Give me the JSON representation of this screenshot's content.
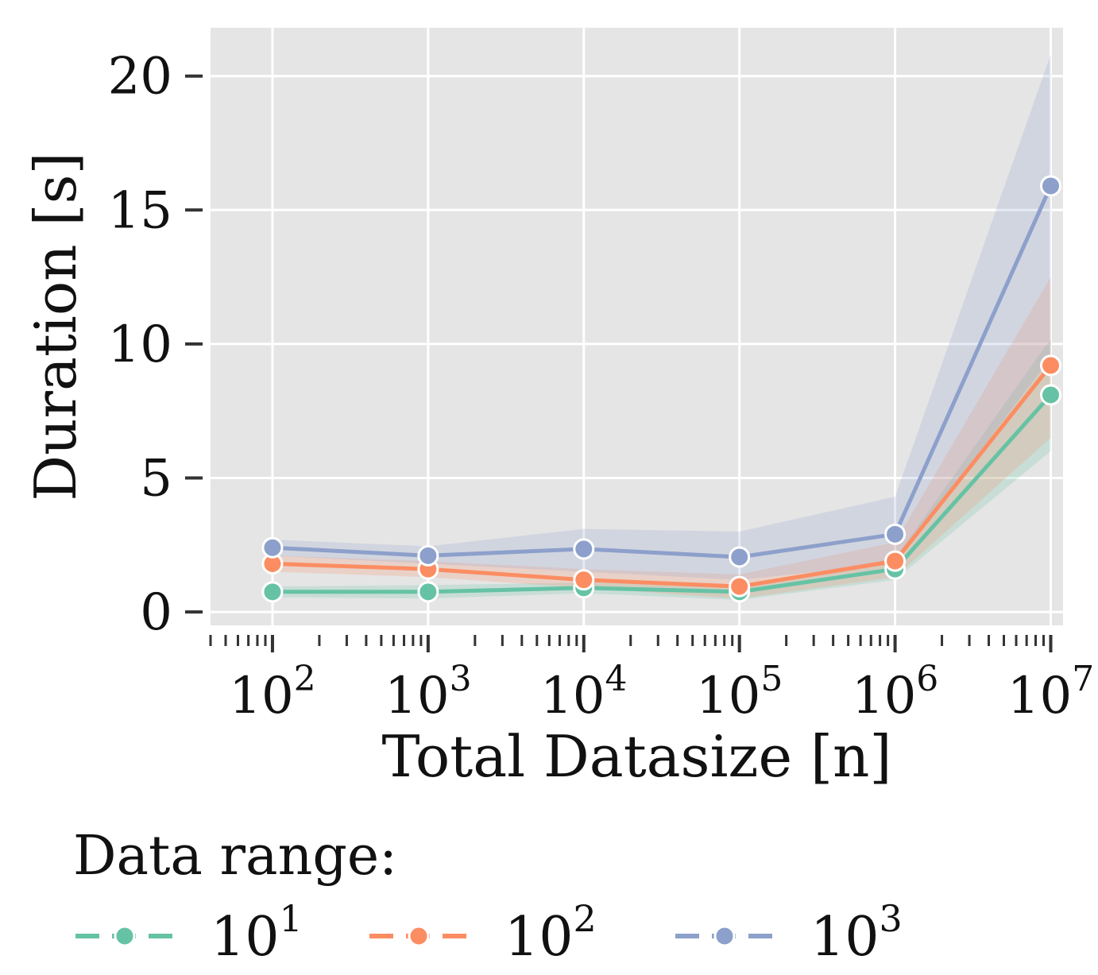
{
  "chart_data": {
    "type": "line",
    "x": [
      100,
      1000,
      10000,
      100000,
      1000000,
      10000000
    ],
    "x_tick_labels": [
      {
        "base": "10",
        "exp": "2"
      },
      {
        "base": "10",
        "exp": "3"
      },
      {
        "base": "10",
        "exp": "4"
      },
      {
        "base": "10",
        "exp": "5"
      },
      {
        "base": "10",
        "exp": "6"
      },
      {
        "base": "10",
        "exp": "7"
      }
    ],
    "xscale": "log",
    "xlim": [
      40,
      12000000
    ],
    "ylim": [
      -0.5,
      21.8
    ],
    "y_ticks": [
      0,
      5,
      10,
      15,
      20
    ],
    "y_tick_labels": [
      "0",
      "5",
      "10",
      "15",
      "20"
    ],
    "xlabel": "Total Datasize [n]",
    "ylabel": "Duration [s]",
    "grid": true,
    "legend_title": "Data range:",
    "legend_position": "bottom",
    "series": [
      {
        "name": "10^1",
        "label_base": "10",
        "label_exp": "1",
        "color": "#66c2a5",
        "values": [
          0.75,
          0.75,
          0.9,
          0.75,
          1.6,
          8.1
        ],
        "ci_low": [
          0.55,
          0.5,
          0.7,
          0.45,
          1.2,
          6.0
        ],
        "ci_high": [
          0.95,
          1.0,
          1.1,
          1.0,
          2.0,
          10.2
        ]
      },
      {
        "name": "10^2",
        "label_base": "10",
        "label_exp": "2",
        "color": "#fc8d62",
        "values": [
          1.8,
          1.6,
          1.2,
          0.95,
          1.9,
          9.2
        ],
        "ci_low": [
          1.5,
          1.3,
          0.9,
          0.5,
          1.3,
          6.5
        ],
        "ci_high": [
          2.1,
          1.9,
          1.6,
          1.4,
          2.6,
          12.5
        ]
      },
      {
        "name": "10^3",
        "label_base": "10",
        "label_exp": "3",
        "color": "#8da0cb",
        "values": [
          2.4,
          2.1,
          2.35,
          2.05,
          2.9,
          15.9
        ],
        "ci_low": [
          2.1,
          1.8,
          1.5,
          1.2,
          1.8,
          9.5
        ],
        "ci_high": [
          2.7,
          2.45,
          3.1,
          3.0,
          4.3,
          20.8
        ]
      }
    ]
  }
}
